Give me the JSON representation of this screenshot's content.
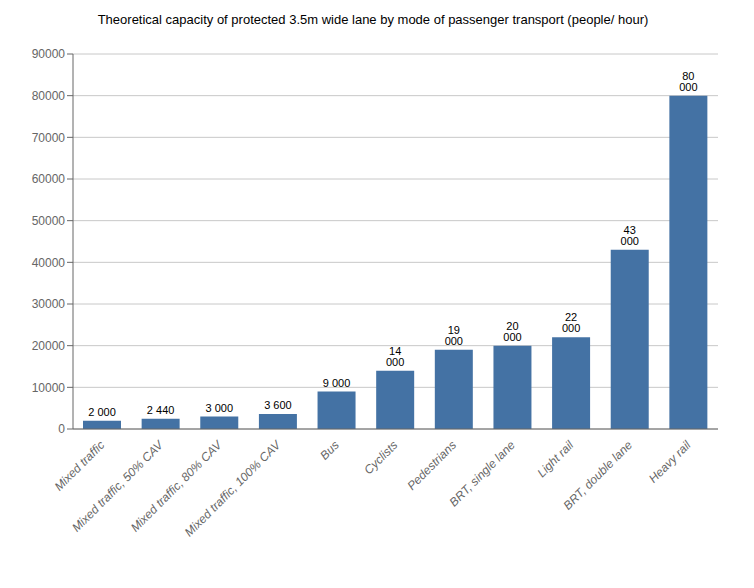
{
  "chart_data": {
    "type": "bar",
    "title": "Theoretical capacity of protected 3.5m wide lane by mode of passenger transport (people/ hour)",
    "categories": [
      "Mixed traffic",
      "Mixed traffic, 50% CAV",
      "Mixed traffic, 80% CAV",
      "Mixed traffic, 100% CAV",
      "Bus",
      "Cyclists",
      "Pedestrians",
      "BRT, single lane",
      "Light rail",
      "BRT, double lane",
      "Heavy rail"
    ],
    "values": [
      2000,
      2440,
      3000,
      3600,
      9000,
      14000,
      19000,
      20000,
      22000,
      43000,
      80000
    ],
    "value_labels": [
      "2 000",
      "2 440",
      "3 000",
      "3 600",
      "9 000",
      "14 000",
      "19 000",
      "20 000",
      "22 000",
      "43 000",
      "80 000"
    ],
    "data_labels": true,
    "color": "#4472a4",
    "ylim": [
      0,
      90000
    ],
    "yticks": [
      0,
      10000,
      20000,
      30000,
      40000,
      50000,
      60000,
      70000,
      80000,
      90000
    ],
    "grid": true
  }
}
